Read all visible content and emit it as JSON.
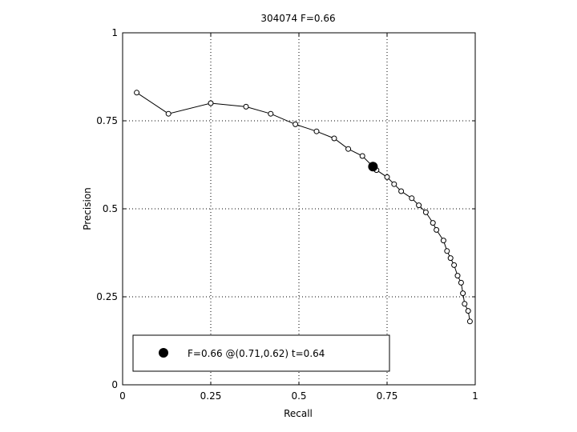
{
  "chart_data": {
    "type": "line",
    "title": "304074 F=0.66",
    "xlabel": "Recall",
    "ylabel": "Precision",
    "xlim": [
      0,
      1
    ],
    "ylim": [
      0,
      1
    ],
    "xticks": [
      "0",
      "0.25",
      "0.5",
      "0.75",
      "1"
    ],
    "yticks": [
      "0",
      "0.25",
      "0.5",
      "0.75",
      "1"
    ],
    "grid": true,
    "series": [
      {
        "x": [
          0.04,
          0.13,
          0.25,
          0.35,
          0.42,
          0.49,
          0.55,
          0.6,
          0.64,
          0.68,
          0.72,
          0.75,
          0.77,
          0.79,
          0.82,
          0.84,
          0.86,
          0.88,
          0.89,
          0.91,
          0.92,
          0.93,
          0.94,
          0.95,
          0.96,
          0.965,
          0.97,
          0.98,
          0.985
        ],
        "y": [
          0.83,
          0.77,
          0.8,
          0.79,
          0.77,
          0.74,
          0.72,
          0.7,
          0.67,
          0.65,
          0.61,
          0.59,
          0.57,
          0.55,
          0.53,
          0.51,
          0.49,
          0.46,
          0.44,
          0.41,
          0.38,
          0.36,
          0.34,
          0.31,
          0.29,
          0.26,
          0.23,
          0.21,
          0.18
        ]
      }
    ],
    "best_point": {
      "x": 0.71,
      "y": 0.62
    },
    "legend": {
      "placement": "bottom-left",
      "text": "F=0.66 @(0.71,0.62) t=0.64"
    }
  }
}
